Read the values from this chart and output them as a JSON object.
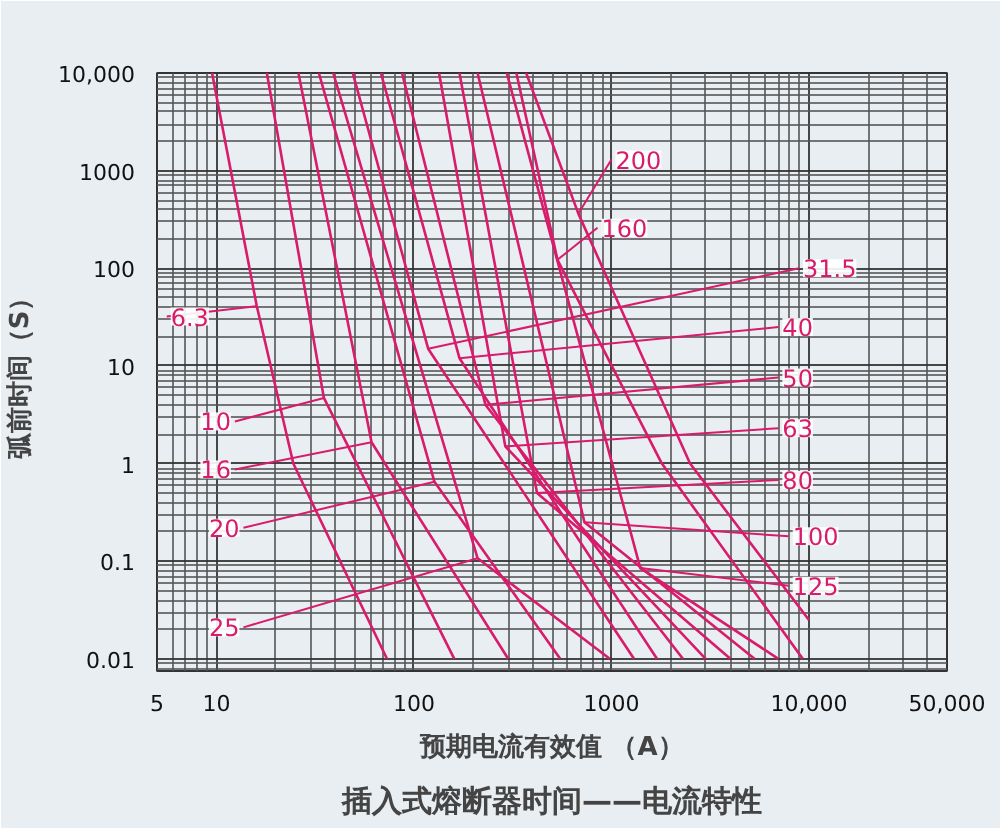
{
  "chart_data": {
    "type": "line",
    "title": "插入式熔断器时间——电流特性",
    "xlabel": "预期电流有效值 （A）",
    "ylabel": "弧前时间（S）",
    "log": "xy",
    "grid": true,
    "marker": "none",
    "line_style": "solid",
    "xlim": [
      5,
      50000
    ],
    "ylim": [
      0.0075,
      10000
    ],
    "xticks": [
      5,
      10,
      100,
      1000,
      {
        "value": 10000,
        "label": "10,000"
      },
      {
        "value": 50000,
        "label": "50,000"
      }
    ],
    "yticks": [
      0.01,
      0.1,
      1,
      10,
      100,
      1000,
      {
        "value": 10000,
        "label": "10,000"
      }
    ],
    "series": [
      {
        "name": "6.3",
        "color": "#d81b6a",
        "x": [
          9.5,
          16,
          24.5,
          73
        ],
        "values": [
          10000,
          41,
          1,
          0.01
        ]
      },
      {
        "name": "10",
        "color": "#d81b6a",
        "x": [
          18,
          35,
          160
        ],
        "values": [
          10000,
          4.7,
          0.01
        ]
      },
      {
        "name": "16",
        "color": "#d81b6a",
        "x": [
          26,
          61,
          300
        ],
        "values": [
          10000,
          1.65,
          0.01
        ]
      },
      {
        "name": "20",
        "color": "#d81b6a",
        "x": [
          33,
          127,
          550
        ],
        "values": [
          10000,
          0.65,
          0.01
        ]
      },
      {
        "name": "25",
        "color": "#d81b6a",
        "x": [
          39,
          210,
          980
        ],
        "values": [
          10000,
          0.107,
          0.01
        ]
      },
      {
        "name": "31.5",
        "color": "#d81b6a",
        "x": [
          49,
          118,
          1300
        ],
        "values": [
          10000,
          15,
          0.01
        ]
      },
      {
        "name": "40",
        "color": "#d81b6a",
        "x": [
          68,
          170,
          1700
        ],
        "values": [
          10000,
          12,
          0.01
        ]
      },
      {
        "name": "50",
        "color": "#d81b6a",
        "x": [
          87,
          230,
          2300
        ],
        "values": [
          10000,
          4,
          0.01
        ]
      },
      {
        "name": "63",
        "color": "#d81b6a",
        "x": [
          134,
          290,
          3000
        ],
        "values": [
          10000,
          1.5,
          0.01
        ]
      },
      {
        "name": "80",
        "color": "#d81b6a",
        "x": [
          170,
          420,
          4000
        ],
        "values": [
          10000,
          0.5,
          0.01
        ]
      },
      {
        "name": "100",
        "color": "#d81b6a",
        "x": [
          210,
          730,
          5300
        ],
        "values": [
          10000,
          0.25,
          0.01
        ]
      },
      {
        "name": "125",
        "color": "#d81b6a",
        "x": [
          295,
          1400,
          7000
        ],
        "values": [
          10000,
          0.085,
          0.01
        ]
      },
      {
        "name": "160",
        "color": "#d81b6a",
        "x": [
          330,
          533,
          1800,
          9300
        ],
        "values": [
          10000,
          122,
          1,
          0.01
        ]
      },
      {
        "name": "200",
        "color": "#d81b6a",
        "x": [
          370,
          680,
          2500,
          10000
        ],
        "values": [
          10000,
          363,
          1,
          0.025
        ]
      }
    ]
  }
}
